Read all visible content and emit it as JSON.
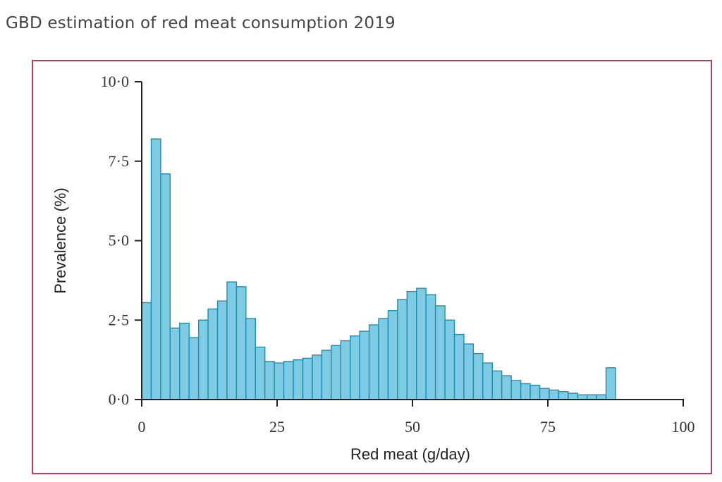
{
  "title": "GBD estimation of red meat consumption 2019",
  "colors": {
    "frame": "#c0385e",
    "bar_fill": "#7ecbe3",
    "bar_stroke": "#1a8fb5",
    "axis": "#222222"
  },
  "chart_data": {
    "type": "bar",
    "title": "GBD estimation of red meat consumption 2019",
    "xlabel": "Red meat (g/day)",
    "ylabel": "Prevalence (%)",
    "xlim": [
      0,
      100
    ],
    "ylim": [
      0,
      10
    ],
    "bin_width": 1.75,
    "x_ticks": [
      0,
      25,
      50,
      75,
      100
    ],
    "x_tick_labels": [
      "0",
      "25",
      "50",
      "75",
      "100"
    ],
    "y_ticks": [
      0,
      2.5,
      5,
      7.5,
      10
    ],
    "y_tick_labels": [
      "0·0",
      "2·5",
      "5·0",
      "7·5",
      "10·0"
    ],
    "grid": false,
    "legend": "none",
    "bin_starts": [
      0,
      1.75,
      3.5,
      5.25,
      7.0,
      8.75,
      10.5,
      12.25,
      14.0,
      15.75,
      17.5,
      19.25,
      21.0,
      22.75,
      24.5,
      26.25,
      28.0,
      29.75,
      31.5,
      33.25,
      35.0,
      36.75,
      38.5,
      40.25,
      42.0,
      43.75,
      45.5,
      47.25,
      49.0,
      50.75,
      52.5,
      54.25,
      56.0,
      57.75,
      59.5,
      61.25,
      63.0,
      64.75,
      66.5,
      68.25,
      70.0,
      71.75,
      73.5,
      75.25,
      77.0,
      78.75,
      80.5,
      82.25,
      84.0,
      85.75
    ],
    "values": [
      3.05,
      8.2,
      7.1,
      2.25,
      2.4,
      1.95,
      2.5,
      2.85,
      3.1,
      3.7,
      3.55,
      2.55,
      1.65,
      1.2,
      1.15,
      1.2,
      1.25,
      1.3,
      1.4,
      1.55,
      1.7,
      1.85,
      2.0,
      2.15,
      2.35,
      2.55,
      2.8,
      3.15,
      3.4,
      3.5,
      3.3,
      2.95,
      2.5,
      2.05,
      1.75,
      1.45,
      1.15,
      0.9,
      0.75,
      0.6,
      0.5,
      0.45,
      0.35,
      0.3,
      0.25,
      0.2,
      0.15,
      0.15,
      0.15,
      1.0
    ]
  }
}
